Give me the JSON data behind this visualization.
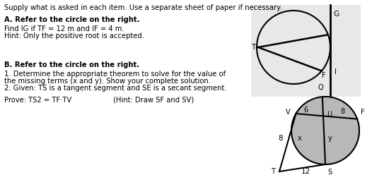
{
  "bg_color": "#e8e8e8",
  "white": "#ffffff",
  "black": "#000000",
  "gray_fill": "#b8b8b8",
  "title_text": "Supply what is asked in each item. Use a separate sheet of paper if necessary.",
  "A_header": "A. Refer to the circle on the right.",
  "A_line1": "Find IG if TF = 12 m and IF = 4 m.",
  "A_line2": "Hint: Only the positive root is accepted.",
  "B_header": "B. Refer to the circle on the right.",
  "B_line1": "1. Determine the appropriate theorem to solve for the value of",
  "B_line2": "the missing terms (x and y). Show your complete solution.",
  "B_line3": "2. Given: TS is a tangent segment and SE is a secant segment.",
  "B_line4": "Prove: TS2 = TF·TV",
  "B_hint": "(Hint: Draw SF and SV)"
}
